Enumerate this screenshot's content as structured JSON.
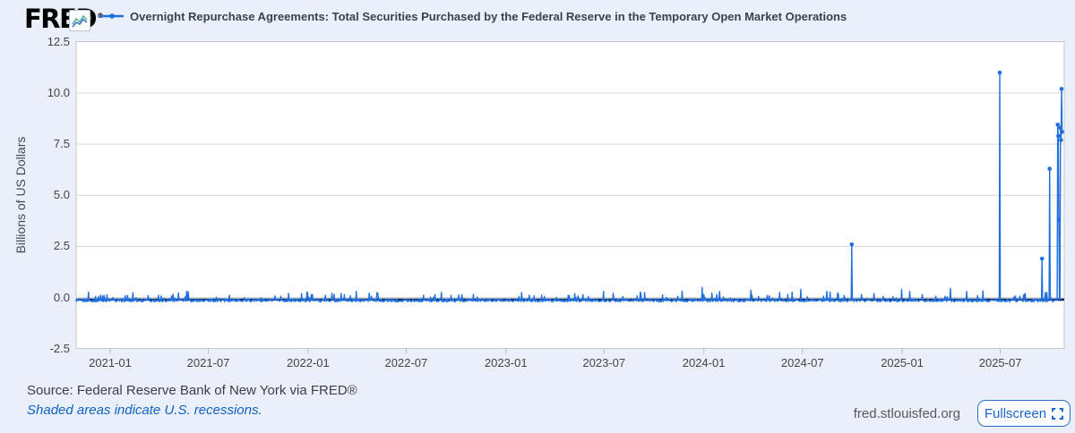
{
  "header": {
    "logo_text": "FRED",
    "logo_reg_mark": "®",
    "legend_label": "Overnight Repurchase Agreements: Total Securities Purchased by the Federal Reserve in the Temporary Open Market Operations"
  },
  "footer": {
    "source_text": "Source: Federal Reserve Bank of New York via FRED®",
    "recession_note": "Shaded areas indicate U.S. recessions.",
    "site_url": "fred.stlouisfed.org",
    "fullscreen_label": "Fullscreen"
  },
  "colors": {
    "page_background": "#e9f0fa",
    "plot_background": "#ffffff",
    "grid_line": "#d6d6d6",
    "plot_border": "#c8c8c8",
    "series_blue": "#1f6fe0",
    "baseline_dark_core": "#13233f",
    "link_blue": "#1261c4",
    "fullscreen_blue": "#1d66cf",
    "axis_text": "#444444"
  },
  "chart_data": {
    "type": "line",
    "title": "Overnight Repurchase Agreements: Total Securities Purchased by the Federal Reserve in the Temporary Open Market Operations",
    "xlabel": "",
    "ylabel": "Billions of US Dollars",
    "ylim": [
      -2.5,
      12.5
    ],
    "yticks": [
      12.5,
      10.0,
      7.5,
      5.0,
      2.5,
      0.0,
      -2.5
    ],
    "ytick_labels": [
      "12.5",
      "10.0",
      "7.5",
      "5.0",
      "2.5",
      "0.0",
      "-2.5"
    ],
    "xtick_labels": [
      "2021-01",
      "2021-07",
      "2022-01",
      "2022-07",
      "2023-01",
      "2023-07",
      "2024-01",
      "2024-07",
      "2025-01",
      "2025-07"
    ],
    "xtick_dates": [
      "2021-01-01",
      "2021-07-01",
      "2022-01-01",
      "2022-07-01",
      "2023-01-01",
      "2023-07-01",
      "2024-01-01",
      "2024-07-01",
      "2025-01-01",
      "2025-07-01"
    ],
    "x_range": [
      "2020-10-30",
      "2025-10-23"
    ],
    "frequency": "daily",
    "grid": true,
    "legend_position": "top",
    "series": [
      {
        "name": "Overnight Repurchase Agreements: Total Securities Purchased by the Federal Reserve in the Temporary Open Market Operations",
        "units": "Billions of US Dollars",
        "baseline": {
          "description": "Daily values hover just below zero (about -0.25 to 0.0) with frequent tiny positive bumps up to about +0.5",
          "typical_value": -0.15
        },
        "major_spikes": [
          {
            "date": "2024-09-30",
            "value": 2.6
          },
          {
            "date": "2025-06-30",
            "value": 11.0
          },
          {
            "date": "2025-09-16",
            "value": 1.9
          },
          {
            "date": "2025-09-30",
            "value": 6.3
          },
          {
            "date": "2025-10-15",
            "value": 8.45
          },
          {
            "date": "2025-10-16",
            "value": 7.9
          },
          {
            "date": "2025-10-17",
            "value": 3.8
          },
          {
            "date": "2025-10-20",
            "value": 8.3
          },
          {
            "date": "2025-10-21",
            "value": 7.7
          },
          {
            "date": "2025-10-22",
            "value": 10.2
          },
          {
            "date": "2025-10-23",
            "value": 8.1
          }
        ],
        "minor_spikes": [
          {
            "date": "2021-12-31",
            "value": 0.25
          },
          {
            "date": "2022-03-31",
            "value": 0.3
          },
          {
            "date": "2023-01-30",
            "value": 0.25
          },
          {
            "date": "2023-06-30",
            "value": 0.3
          },
          {
            "date": "2023-12-29",
            "value": 0.5
          },
          {
            "date": "2024-01-30",
            "value": 0.3
          },
          {
            "date": "2024-03-28",
            "value": 0.35
          },
          {
            "date": "2024-06-28",
            "value": 0.4
          },
          {
            "date": "2024-08-15",
            "value": 0.3
          },
          {
            "date": "2024-12-31",
            "value": 0.4
          },
          {
            "date": "2025-01-15",
            "value": 0.3
          },
          {
            "date": "2025-03-31",
            "value": 0.45
          },
          {
            "date": "2025-04-30",
            "value": 0.3
          }
        ]
      }
    ]
  }
}
